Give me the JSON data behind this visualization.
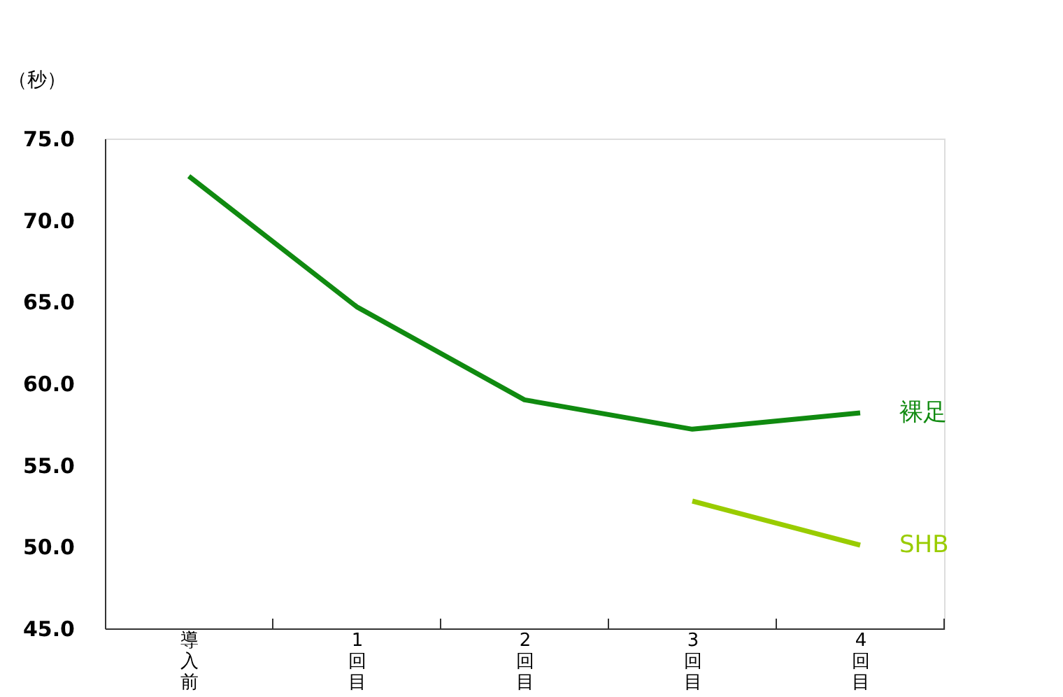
{
  "chart_data": {
    "type": "line",
    "ylabel": "（秒）",
    "categories": [
      "導入前",
      "1回目",
      "2回目",
      "3回目",
      "4回目"
    ],
    "series": [
      {
        "name": "裸足",
        "color": "#108a10",
        "values": [
          72.7,
          64.7,
          59.0,
          57.2,
          58.2
        ]
      },
      {
        "name": "SHB",
        "color": "#99cc00",
        "values": [
          null,
          null,
          null,
          52.8,
          50.1
        ]
      }
    ],
    "ylim": [
      45,
      75
    ],
    "yticks": [
      {
        "value": 45,
        "label": "45.0"
      },
      {
        "value": 50,
        "label": "50.0"
      },
      {
        "value": 55,
        "label": "55.0"
      },
      {
        "value": 60,
        "label": "60.0"
      },
      {
        "value": 65,
        "label": "65.0"
      },
      {
        "value": 70,
        "label": "70.0"
      },
      {
        "value": 75,
        "label": "75.0"
      }
    ],
    "grid": false,
    "legend": false,
    "marker": "none",
    "line_style": "solid"
  }
}
